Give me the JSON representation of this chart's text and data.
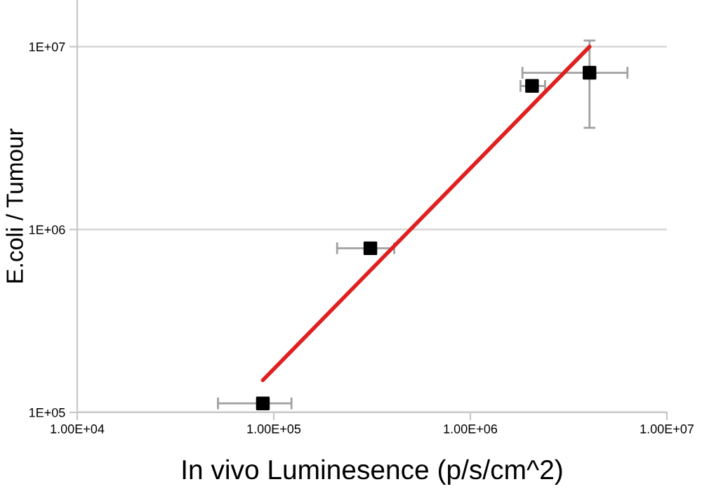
{
  "chart_data": {
    "type": "scatter",
    "xlabel": "In vivo Luminesence (p/s/cm^2)",
    "ylabel": "E.coli / Tumour",
    "log": "xy",
    "grid": "y",
    "xlim": [
      10000,
      10000000
    ],
    "ylim": [
      100000,
      18000000
    ],
    "xticks": [
      {
        "value": 10000,
        "label": "1.00E+04"
      },
      {
        "value": 100000,
        "label": "1.00E+05"
      },
      {
        "value": 1000000,
        "label": "1.00E+06"
      },
      {
        "value": 10000000,
        "label": "1.00E+07"
      }
    ],
    "yticks": [
      {
        "value": 100000,
        "label": "1E+05"
      },
      {
        "value": 1000000,
        "label": "1E+06"
      },
      {
        "value": 10000000,
        "label": "1E+07"
      }
    ],
    "series": [
      {
        "marker": "square",
        "color": "#000000",
        "x": [
          88000,
          310000,
          2060000,
          4040000
        ],
        "values": [
          112000,
          790000,
          6100000,
          7200000
        ],
        "xerrors": [
          [
            52000,
            123000
          ],
          [
            210000,
            410000
          ],
          [
            1800000,
            2400000
          ],
          [
            1840000,
            6300000
          ]
        ],
        "errors": [
          null,
          null,
          null,
          [
            3600000,
            10800000
          ]
        ]
      },
      {
        "type": "line",
        "color": "#e02020",
        "x": [
          88000,
          4040000
        ],
        "values": [
          150000,
          10000000
        ]
      }
    ]
  }
}
